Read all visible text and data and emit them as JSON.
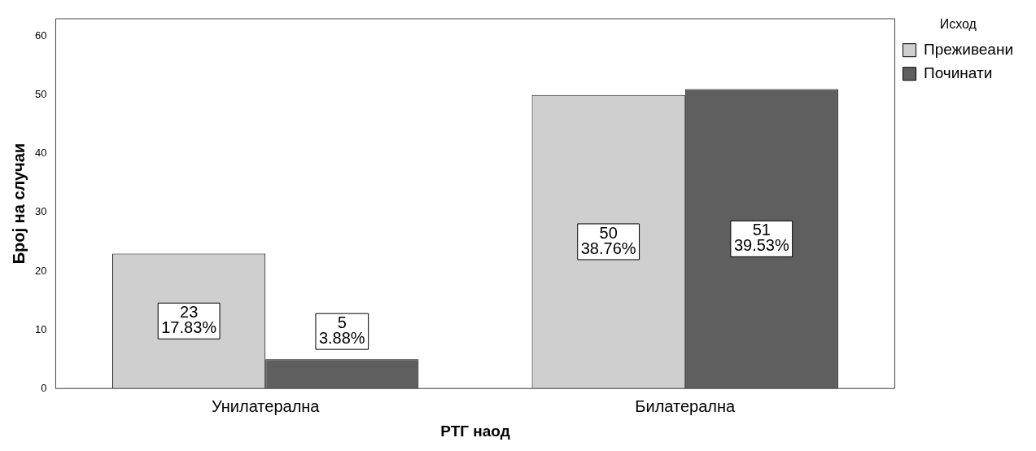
{
  "chart_data": {
    "type": "bar",
    "xlabel": "РТГ наод",
    "ylabel": "Број на случаи",
    "legend_title": "Исход",
    "legend": "top right",
    "categories": [
      "Унилатерална",
      "Билатерална"
    ],
    "series": [
      {
        "name": "Преживеани",
        "color": "#cfcfcf",
        "values": [
          23,
          50
        ],
        "value_labels": [
          "23\n17.83%",
          "50\n38.76%"
        ]
      },
      {
        "name": "Починати",
        "color": "#5f5f5f",
        "values": [
          5,
          51
        ],
        "value_labels": [
          "5\n3.88%",
          "51\n39.53%"
        ]
      }
    ],
    "ylim": [
      0,
      63
    ],
    "yticks": [
      0,
      10,
      20,
      30,
      40,
      50,
      60
    ],
    "grid": false
  }
}
